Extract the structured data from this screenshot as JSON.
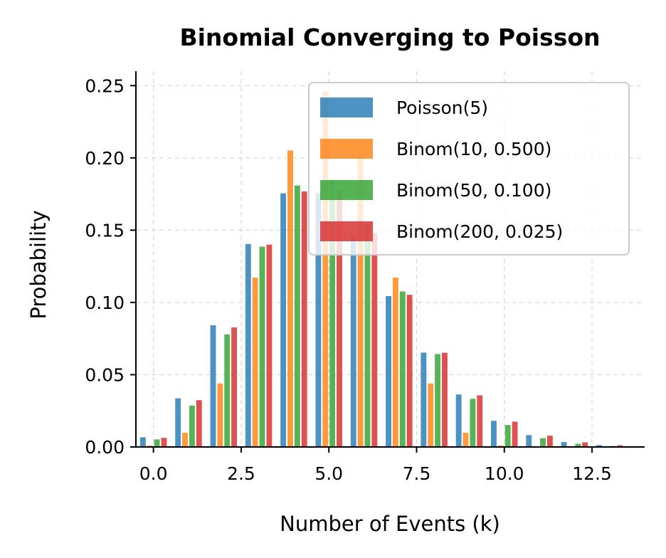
{
  "chart_data": {
    "type": "bar",
    "title": "Binomial Converging to Poisson",
    "xlabel": "Number of Events (k)",
    "ylabel": "Probability",
    "xlim": [
      -0.5,
      14
    ],
    "ylim": [
      0,
      0.26
    ],
    "x_ticks": [
      "0.0",
      "2.5",
      "5.0",
      "7.5",
      "10.0",
      "12.5"
    ],
    "x_tick_values": [
      0,
      2.5,
      5,
      7.5,
      10,
      12.5
    ],
    "y_ticks": [
      "0.00",
      "0.05",
      "0.10",
      "0.15",
      "0.20",
      "0.25"
    ],
    "y_tick_values": [
      0,
      0.05,
      0.1,
      0.15,
      0.2,
      0.25
    ],
    "grid": true,
    "legend_position": "top-right",
    "x": [
      0,
      1,
      2,
      3,
      4,
      5,
      6,
      7,
      8,
      9,
      10,
      11,
      12,
      13
    ],
    "series": [
      {
        "name": "Poisson(5)",
        "color": "#1f77b4",
        "values": [
          0.0067,
          0.0337,
          0.0842,
          0.1404,
          0.1755,
          0.1755,
          0.1462,
          0.1044,
          0.0653,
          0.0363,
          0.0181,
          0.0082,
          0.0034,
          0.0013
        ]
      },
      {
        "name": "Binom(10, 0.500)",
        "color": "#ff7f0e",
        "values": [
          0.001,
          0.0098,
          0.0439,
          0.1172,
          0.2051,
          0.2461,
          0.2051,
          0.1172,
          0.0439,
          0.0098,
          0.001,
          0,
          0,
          0
        ]
      },
      {
        "name": "Binom(50, 0.100)",
        "color": "#2ca02c",
        "values": [
          0.0052,
          0.0286,
          0.0779,
          0.1386,
          0.1809,
          0.1849,
          0.1541,
          0.1076,
          0.0643,
          0.0333,
          0.0152,
          0.0061,
          0.0022,
          0.0007
        ]
      },
      {
        "name": "Binom(200, 0.025)",
        "color": "#d62728",
        "values": [
          0.0063,
          0.0324,
          0.0827,
          0.14,
          0.1768,
          0.1777,
          0.1481,
          0.1053,
          0.0652,
          0.0357,
          0.0175,
          0.0078,
          0.0032,
          0.0012
        ]
      }
    ]
  }
}
